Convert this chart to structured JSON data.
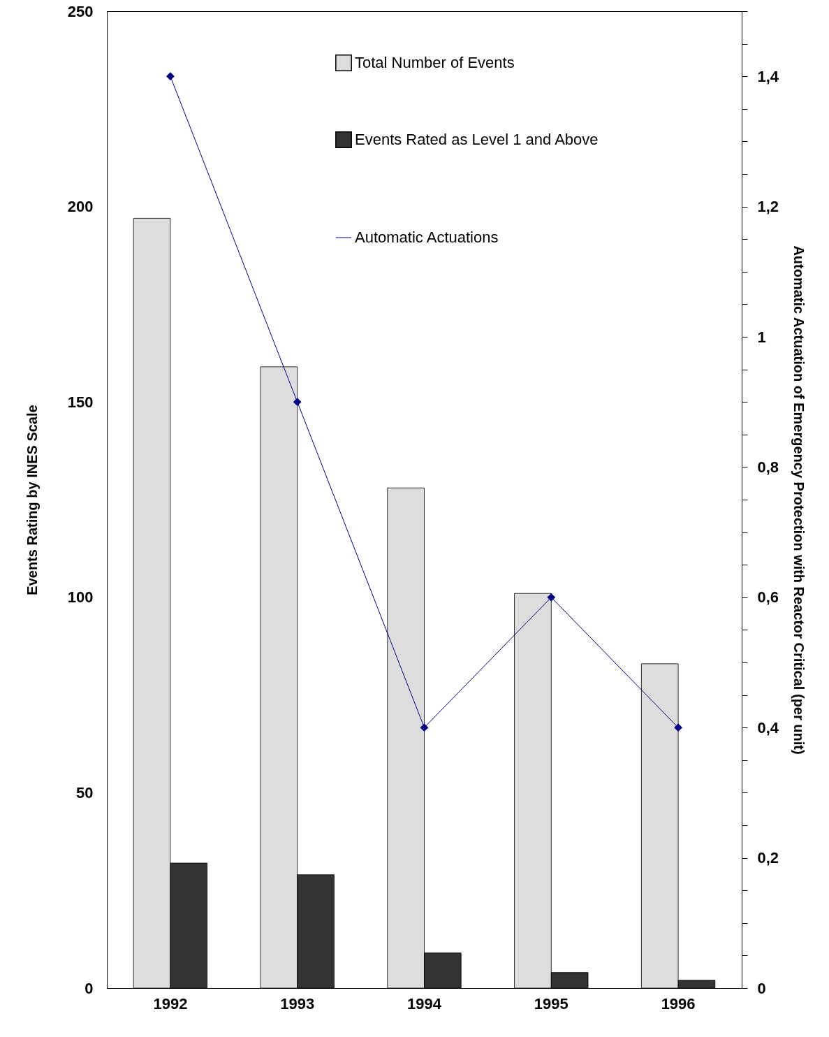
{
  "chart_data": {
    "type": "bar",
    "ylabel": "Events Rating by INES Scale",
    "y2label": "Automatic Actuation of Emergency Protection with Reactor Critical (per unit)",
    "categories": [
      "1992",
      "1993",
      "1994",
      "1995",
      "1996"
    ],
    "series": [
      {
        "name": "Total Number of Events",
        "color": "#dddddd",
        "values": [
          197,
          159,
          128,
          101,
          83
        ]
      },
      {
        "name": "Events Rated as Level 1 and Above",
        "color": "#333333",
        "values": [
          32,
          29,
          9,
          4,
          2
        ]
      },
      {
        "name": "Automatic Actuations",
        "type": "line",
        "axis": "y2",
        "color": "#000080",
        "marker": "diamond",
        "values": [
          1.4,
          0.9,
          0.4,
          0.6,
          0.4
        ]
      }
    ],
    "ylim": [
      0,
      250
    ],
    "yticks": [
      0,
      50,
      100,
      150,
      200,
      250
    ],
    "y2lim": [
      0,
      1.5
    ],
    "y2ticks": [
      {
        "value": 0,
        "label": "0"
      },
      {
        "value": 0.05,
        "label": null
      },
      {
        "value": 0.1,
        "label": null
      },
      {
        "value": 0.15,
        "label": null
      },
      {
        "value": 0.2,
        "label": "0,2"
      },
      {
        "value": 0.25,
        "label": null
      },
      {
        "value": 0.3,
        "label": null
      },
      {
        "value": 0.35,
        "label": null
      },
      {
        "value": 0.4,
        "label": "0,4"
      },
      {
        "value": 0.45,
        "label": null
      },
      {
        "value": 0.5,
        "label": null
      },
      {
        "value": 0.55,
        "label": null
      },
      {
        "value": 0.6,
        "label": "0,6"
      },
      {
        "value": 0.65,
        "label": null
      },
      {
        "value": 0.7,
        "label": null
      },
      {
        "value": 0.75,
        "label": null
      },
      {
        "value": 0.8,
        "label": "0,8"
      },
      {
        "value": 0.85,
        "label": null
      },
      {
        "value": 0.9,
        "label": null
      },
      {
        "value": 0.95,
        "label": null
      },
      {
        "value": 1,
        "label": "1"
      },
      {
        "value": 1.05,
        "label": null
      },
      {
        "value": 1.1,
        "label": null
      },
      {
        "value": 1.15,
        "label": null
      },
      {
        "value": 1.2,
        "label": "1,2"
      },
      {
        "value": 1.25,
        "label": null
      },
      {
        "value": 1.3,
        "label": null
      },
      {
        "value": 1.35,
        "label": null
      },
      {
        "value": 1.4,
        "label": "1,4"
      },
      {
        "value": 1.45,
        "label": null
      },
      {
        "value": 1.5,
        "label": null
      }
    ],
    "legend": "top right",
    "grid": false
  }
}
